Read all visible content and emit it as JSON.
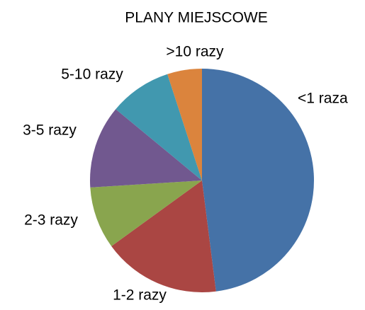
{
  "chart_data": {
    "type": "pie",
    "title": "PLANY MIEJSCOWE",
    "categories": [
      "<1 raza",
      "1-2 razy",
      "2-3 razy",
      "3-5 razy",
      "5-10 razy",
      ">10 razy"
    ],
    "values": [
      48,
      17,
      9,
      12,
      9,
      5
    ],
    "colors": [
      "#4572a7",
      "#aa4643",
      "#89a54e",
      "#71588f",
      "#4198af",
      "#db843d"
    ]
  }
}
